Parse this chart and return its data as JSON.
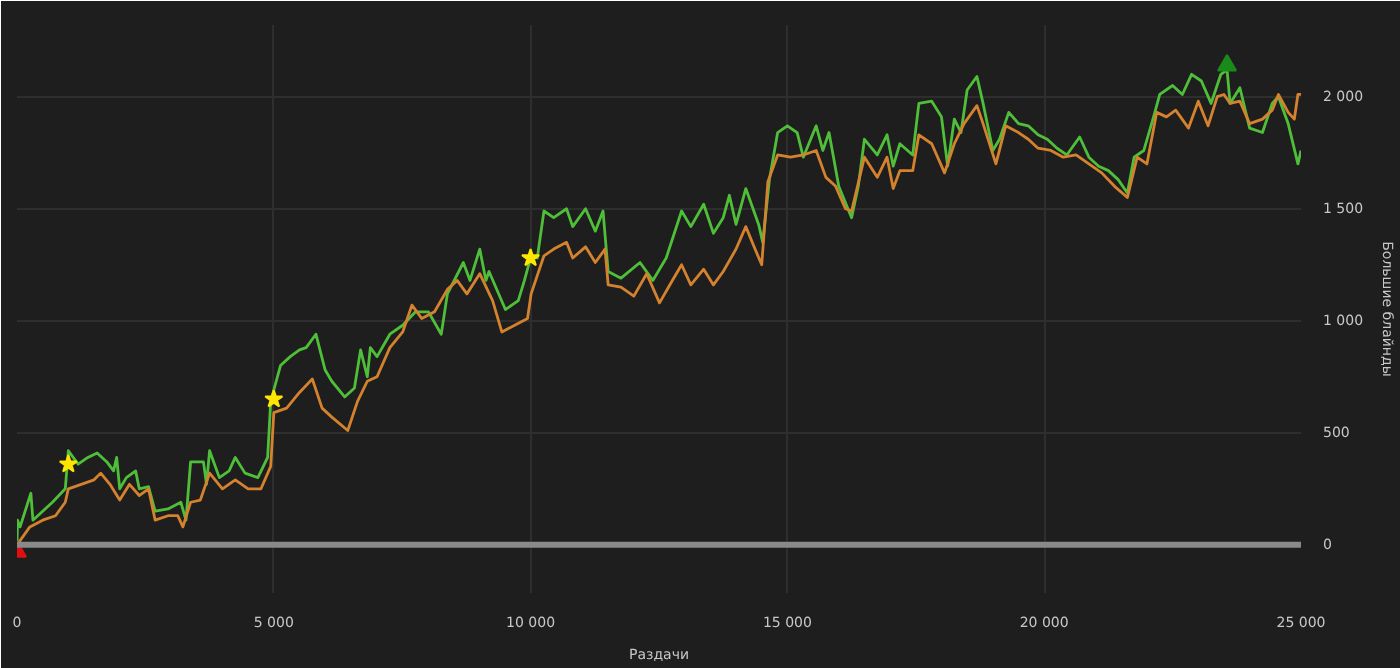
{
  "chart_data": {
    "type": "line",
    "xlabel": "Раздачи",
    "ylabel": "Большие блайнды",
    "xlim": [
      0,
      25000
    ],
    "ylim": [
      -215,
      2320
    ],
    "xticks": [
      0,
      {
        "value": 5000,
        "label": "5 000"
      },
      {
        "value": 10000,
        "label": "10 000"
      },
      {
        "value": 15000,
        "label": "15 000"
      },
      {
        "value": 20000,
        "label": "20 000"
      },
      {
        "value": 25000,
        "label": "25 000"
      }
    ],
    "yticks": [
      0,
      500,
      {
        "value": 1000,
        "label": "1 000"
      },
      {
        "value": 1500,
        "label": "1 500"
      },
      {
        "value": 2000,
        "label": "2 000"
      }
    ],
    "grid": true,
    "marker": "none",
    "line_style": "solid",
    "ref_lines": [
      {
        "axis": "y",
        "value": 0,
        "color": "#8a8a8a"
      }
    ],
    "series": [
      {
        "color": "#4fbf3a",
        "x": [
          0,
          10,
          60,
          270,
          310,
          500,
          690,
          940,
          1000,
          1190,
          1380,
          1560,
          1750,
          1880,
          1940,
          2000,
          2130,
          2310,
          2380,
          2560,
          2690,
          2940,
          3190,
          3290,
          3380,
          3630,
          3690,
          3750,
          3940,
          4130,
          4250,
          4440,
          4690,
          4880,
          4940,
          5130,
          5320,
          5500,
          5630,
          5820,
          6000,
          6130,
          6380,
          6570,
          6690,
          6820,
          6880,
          7010,
          7260,
          7510,
          7760,
          8010,
          8260,
          8380,
          8690,
          8820,
          9010,
          9130,
          9190,
          9510,
          9760,
          9880,
          10010,
          10130,
          10260,
          10450,
          10700,
          10820,
          11070,
          11260,
          11410,
          11510,
          11760,
          12130,
          12380,
          12640,
          12940,
          13120,
          13370,
          13560,
          13750,
          13870,
          14000,
          14190,
          14440,
          14520,
          14650,
          14810,
          15000,
          15190,
          15310,
          15560,
          15690,
          15810,
          16000,
          16250,
          16380,
          16500,
          16750,
          16940,
          17060,
          17190,
          17440,
          17560,
          17810,
          18000,
          18120,
          18250,
          18380,
          18500,
          18690,
          18810,
          19000,
          19130,
          19310,
          19500,
          19690,
          19880,
          20060,
          20250,
          20440,
          20690,
          20870,
          21060,
          21250,
          21440,
          21620,
          21750,
          21940,
          22130,
          22250,
          22500,
          22690,
          22870,
          23060,
          23250,
          23440,
          23560,
          23620,
          23810,
          24000,
          24250,
          24440,
          24560,
          24750,
          24940,
          25000
        ],
        "values": [
          0,
          110,
          80,
          230,
          110,
          150,
          190,
          250,
          420,
          360,
          390,
          410,
          370,
          330,
          390,
          250,
          300,
          330,
          250,
          260,
          150,
          160,
          190,
          110,
          370,
          370,
          270,
          420,
          300,
          330,
          390,
          320,
          300,
          390,
          640,
          800,
          840,
          870,
          880,
          940,
          780,
          730,
          660,
          700,
          870,
          750,
          880,
          840,
          940,
          980,
          1040,
          1040,
          940,
          1120,
          1260,
          1180,
          1320,
          1180,
          1220,
          1050,
          1090,
          1180,
          1290,
          1280,
          1490,
          1460,
          1500,
          1420,
          1500,
          1400,
          1490,
          1220,
          1190,
          1260,
          1180,
          1280,
          1490,
          1420,
          1520,
          1390,
          1460,
          1560,
          1430,
          1590,
          1430,
          1350,
          1630,
          1840,
          1870,
          1840,
          1730,
          1870,
          1760,
          1840,
          1600,
          1460,
          1600,
          1810,
          1740,
          1830,
          1690,
          1790,
          1740,
          1970,
          1980,
          1910,
          1690,
          1900,
          1840,
          2030,
          2090,
          1970,
          1760,
          1810,
          1930,
          1880,
          1870,
          1830,
          1810,
          1770,
          1740,
          1820,
          1730,
          1690,
          1670,
          1630,
          1570,
          1730,
          1760,
          1910,
          2010,
          2050,
          2010,
          2100,
          2070,
          1970,
          2100,
          2120,
          1970,
          2040,
          1860,
          1840,
          1970,
          2000,
          1880,
          1700,
          1760
        ]
      },
      {
        "color": "#d4822e",
        "x": [
          0,
          250,
          500,
          750,
          940,
          1000,
          1250,
          1500,
          1630,
          1810,
          2000,
          2190,
          2380,
          2560,
          2690,
          2940,
          3130,
          3230,
          3380,
          3570,
          3750,
          4000,
          4250,
          4500,
          4750,
          4940,
          5000,
          5250,
          5500,
          5750,
          5940,
          6130,
          6440,
          6630,
          6820,
          7010,
          7260,
          7510,
          7690,
          7880,
          8130,
          8380,
          8570,
          8760,
          9010,
          9260,
          9440,
          9690,
          9940,
          10010,
          10260,
          10450,
          10700,
          10820,
          11070,
          11260,
          11450,
          11510,
          11760,
          12010,
          12260,
          12510,
          12760,
          12940,
          13120,
          13370,
          13560,
          13750,
          14000,
          14190,
          14370,
          14500,
          14620,
          14810,
          15060,
          15310,
          15560,
          15750,
          15940,
          16130,
          16250,
          16500,
          16750,
          16940,
          17060,
          17190,
          17440,
          17560,
          17810,
          18060,
          18250,
          18440,
          18690,
          18810,
          19060,
          19250,
          19500,
          19690,
          19880,
          20130,
          20370,
          20620,
          20870,
          21120,
          21370,
          21620,
          21810,
          22000,
          22190,
          22380,
          22560,
          22810,
          23000,
          23190,
          23370,
          23500,
          23620,
          23810,
          24000,
          24250,
          24440,
          24560,
          24750,
          24870,
          24940,
          25000
        ],
        "values": [
          0,
          80,
          110,
          130,
          190,
          250,
          270,
          290,
          320,
          270,
          200,
          270,
          220,
          250,
          110,
          130,
          130,
          80,
          190,
          200,
          320,
          250,
          290,
          250,
          250,
          350,
          590,
          610,
          680,
          740,
          610,
          570,
          510,
          640,
          730,
          750,
          880,
          950,
          1070,
          1010,
          1040,
          1140,
          1180,
          1120,
          1210,
          1090,
          950,
          980,
          1010,
          1120,
          1290,
          1320,
          1350,
          1280,
          1330,
          1260,
          1320,
          1160,
          1150,
          1110,
          1210,
          1080,
          1180,
          1250,
          1160,
          1230,
          1160,
          1220,
          1320,
          1420,
          1320,
          1250,
          1620,
          1740,
          1730,
          1740,
          1760,
          1640,
          1600,
          1500,
          1490,
          1730,
          1640,
          1730,
          1590,
          1670,
          1670,
          1830,
          1790,
          1660,
          1790,
          1880,
          1960,
          1880,
          1700,
          1870,
          1840,
          1810,
          1770,
          1760,
          1730,
          1740,
          1700,
          1660,
          1600,
          1550,
          1730,
          1700,
          1930,
          1910,
          1940,
          1860,
          1980,
          1870,
          2000,
          2010,
          1970,
          1980,
          1880,
          1900,
          1940,
          2010,
          1930,
          1900,
          2010,
          2010
        ]
      },
      {
        "type": "scatter",
        "marker": "star",
        "color": "#ffe600",
        "x": [
          1000,
          5000,
          10000
        ],
        "values": [
          360,
          650,
          1280
        ]
      },
      {
        "type": "scatter",
        "marker": "triangle",
        "color": "#1a8a1a",
        "x": [
          23560
        ],
        "values": [
          2140
        ]
      },
      {
        "type": "scatter",
        "marker": "triangle",
        "color": "#e01010",
        "x": [
          0
        ],
        "values": [
          -30
        ]
      }
    ]
  }
}
